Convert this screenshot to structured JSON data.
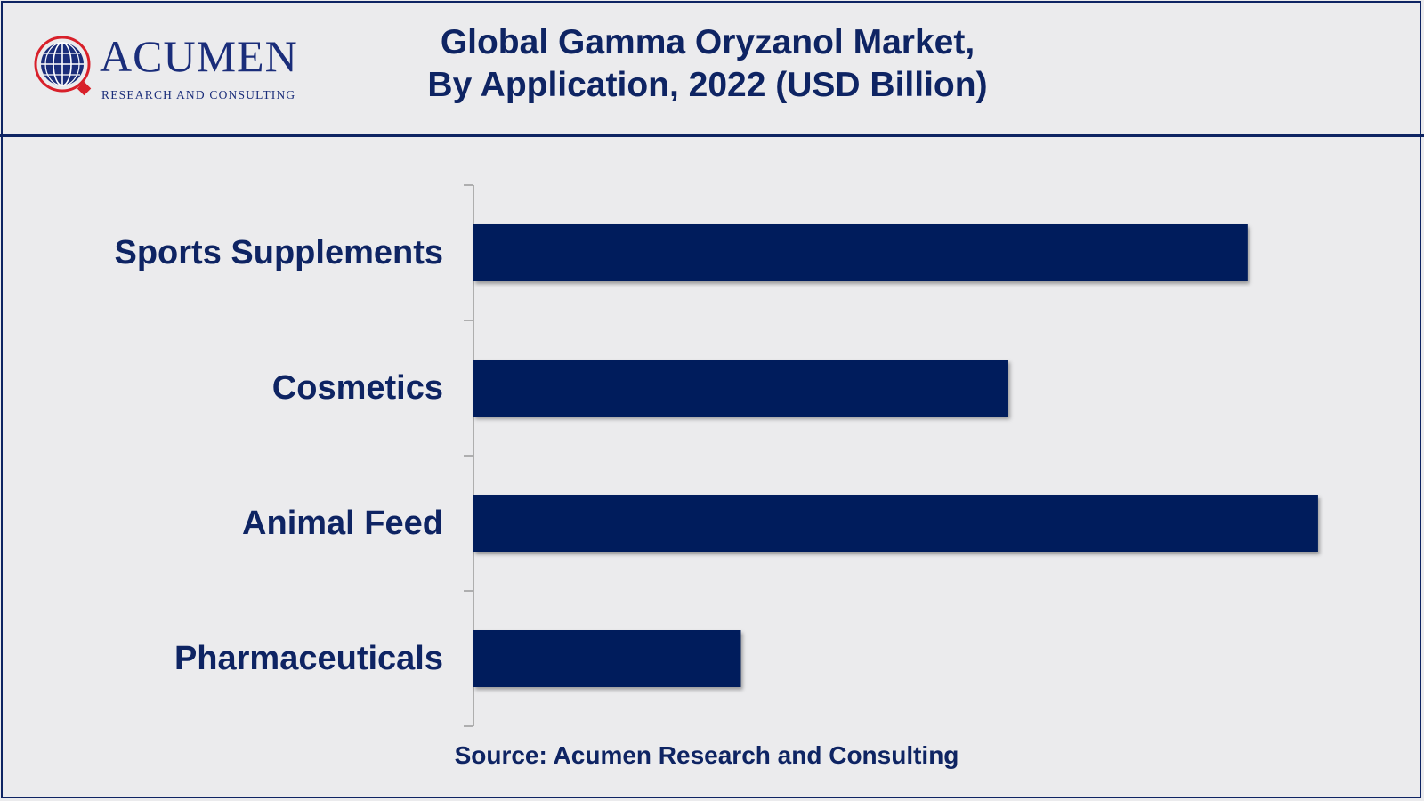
{
  "header": {
    "title_line1": "Global Gamma Oryzanol Market,",
    "title_line2": "By Application, 2022 (USD Billion)"
  },
  "logo": {
    "name": "ACUMEN",
    "tagline": "RESEARCH AND CONSULTING"
  },
  "footer": {
    "source": "Source: Acumen Research and Consulting"
  },
  "colors": {
    "bar": "#001f5c",
    "text": "#0e2463",
    "background": "#ebebed",
    "logo_accent": "#d8202a"
  },
  "chart_data": {
    "type": "bar",
    "orientation": "horizontal",
    "title": "Global Gamma Oryzanol Market, By Application, 2022 (USD Billion)",
    "categories": [
      "Sports Supplements",
      "Cosmetics",
      "Animal Feed",
      "Pharmaceuticals"
    ],
    "series": [
      {
        "values": [
          0.11,
          0.076,
          0.12,
          0.038
        ]
      }
    ],
    "xlim": [
      0,
      0.13
    ],
    "grid": false,
    "legend": "none"
  }
}
